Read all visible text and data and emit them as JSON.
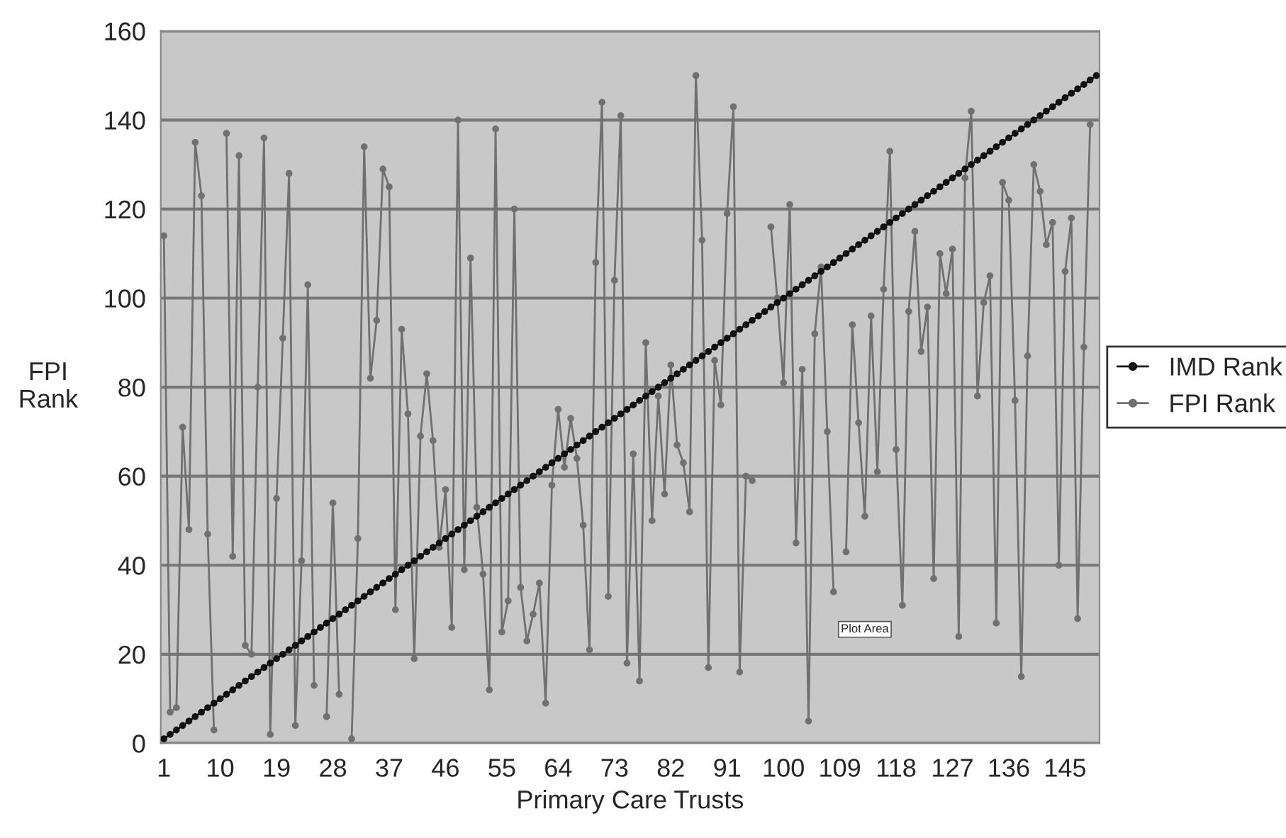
{
  "chart_data": {
    "type": "line",
    "xlabel": "Primary Care Trusts",
    "ylabel": "FPI\nRank",
    "categories": [
      "1",
      null,
      null,
      null,
      null,
      null,
      null,
      null,
      null,
      "10",
      null,
      null,
      null,
      null,
      null,
      null,
      null,
      null,
      "19",
      null,
      null,
      null,
      null,
      null,
      null,
      null,
      null,
      "28",
      null,
      null,
      null,
      null,
      null,
      null,
      null,
      null,
      "37",
      null,
      null,
      null,
      null,
      null,
      null,
      null,
      null,
      "46",
      null,
      null,
      null,
      null,
      null,
      null,
      null,
      null,
      "55",
      null,
      null,
      null,
      null,
      null,
      null,
      null,
      null,
      "64",
      null,
      null,
      null,
      null,
      null,
      null,
      null,
      null,
      "73",
      null,
      null,
      null,
      null,
      null,
      null,
      null,
      null,
      "82",
      null,
      null,
      null,
      null,
      null,
      null,
      null,
      null,
      "91",
      null,
      null,
      null,
      null,
      null,
      null,
      null,
      null,
      "100",
      null,
      null,
      null,
      null,
      null,
      null,
      null,
      null,
      "109",
      null,
      null,
      null,
      null,
      null,
      null,
      null,
      null,
      "118",
      null,
      null,
      null,
      null,
      null,
      null,
      null,
      null,
      "127",
      null,
      null,
      null,
      null,
      null,
      null,
      null,
      null,
      "136",
      null,
      null,
      null,
      null,
      null,
      null,
      null,
      null,
      "145",
      null,
      null,
      null,
      null,
      null
    ],
    "series": [
      {
        "name": "IMD Rank",
        "color": "#111111",
        "values": [
          1,
          2,
          3,
          4,
          5,
          6,
          7,
          8,
          9,
          10,
          11,
          12,
          13,
          14,
          15,
          16,
          17,
          18,
          19,
          20,
          21,
          22,
          23,
          24,
          25,
          26,
          27,
          28,
          29,
          30,
          31,
          32,
          33,
          34,
          35,
          36,
          37,
          38,
          39,
          40,
          41,
          42,
          43,
          44,
          45,
          46,
          47,
          48,
          49,
          50,
          51,
          52,
          53,
          54,
          55,
          56,
          57,
          58,
          59,
          60,
          61,
          62,
          63,
          64,
          65,
          66,
          67,
          68,
          69,
          70,
          71,
          72,
          73,
          74,
          75,
          76,
          77,
          78,
          79,
          80,
          81,
          82,
          83,
          84,
          85,
          86,
          87,
          88,
          89,
          90,
          91,
          92,
          93,
          94,
          95,
          96,
          97,
          98,
          99,
          100,
          101,
          102,
          103,
          104,
          105,
          106,
          107,
          108,
          109,
          110,
          111,
          112,
          113,
          114,
          115,
          116,
          117,
          118,
          119,
          120,
          121,
          122,
          123,
          124,
          125,
          126,
          127,
          128,
          129,
          130,
          131,
          132,
          133,
          134,
          135,
          136,
          137,
          138,
          139,
          140,
          141,
          142,
          143,
          144,
          145,
          146,
          147,
          148,
          149,
          150
        ]
      },
      {
        "name": "FPI Rank",
        "color": "#707070",
        "values": [
          114,
          7,
          8,
          71,
          48,
          135,
          123,
          47,
          3,
          null,
          137,
          42,
          132,
          22,
          20,
          80,
          136,
          2,
          55,
          91,
          128,
          4,
          41,
          103,
          13,
          null,
          6,
          54,
          11,
          null,
          1,
          46,
          134,
          82,
          95,
          129,
          125,
          30,
          93,
          74,
          19,
          69,
          83,
          68,
          44,
          57,
          26,
          140,
          39,
          109,
          53,
          38,
          12,
          138,
          25,
          32,
          120,
          35,
          23,
          29,
          36,
          9,
          58,
          75,
          62,
          73,
          64,
          49,
          21,
          108,
          144,
          33,
          104,
          141,
          18,
          65,
          14,
          90,
          50,
          78,
          56,
          85,
          67,
          63,
          52,
          150,
          113,
          17,
          86,
          76,
          119,
          143,
          16,
          60,
          59,
          null,
          null,
          116,
          100,
          81,
          121,
          45,
          84,
          5,
          92,
          107,
          70,
          34,
          null,
          43,
          94,
          72,
          51,
          96,
          61,
          102,
          133,
          66,
          31,
          97,
          115,
          88,
          98,
          37,
          110,
          101,
          111,
          24,
          127,
          142,
          78,
          99,
          105,
          27,
          126,
          122,
          77,
          15,
          87,
          130,
          124,
          112,
          117,
          40,
          106,
          118,
          28,
          89,
          139,
          null
        ]
      }
    ],
    "ylim": [
      0,
      160
    ],
    "yticks": [
      0,
      20,
      40,
      60,
      80,
      100,
      120,
      140,
      160
    ],
    "grid": "y",
    "legend": "right",
    "marker": "circle",
    "line_style": "solid",
    "annotations": [
      "Plot Area"
    ]
  }
}
